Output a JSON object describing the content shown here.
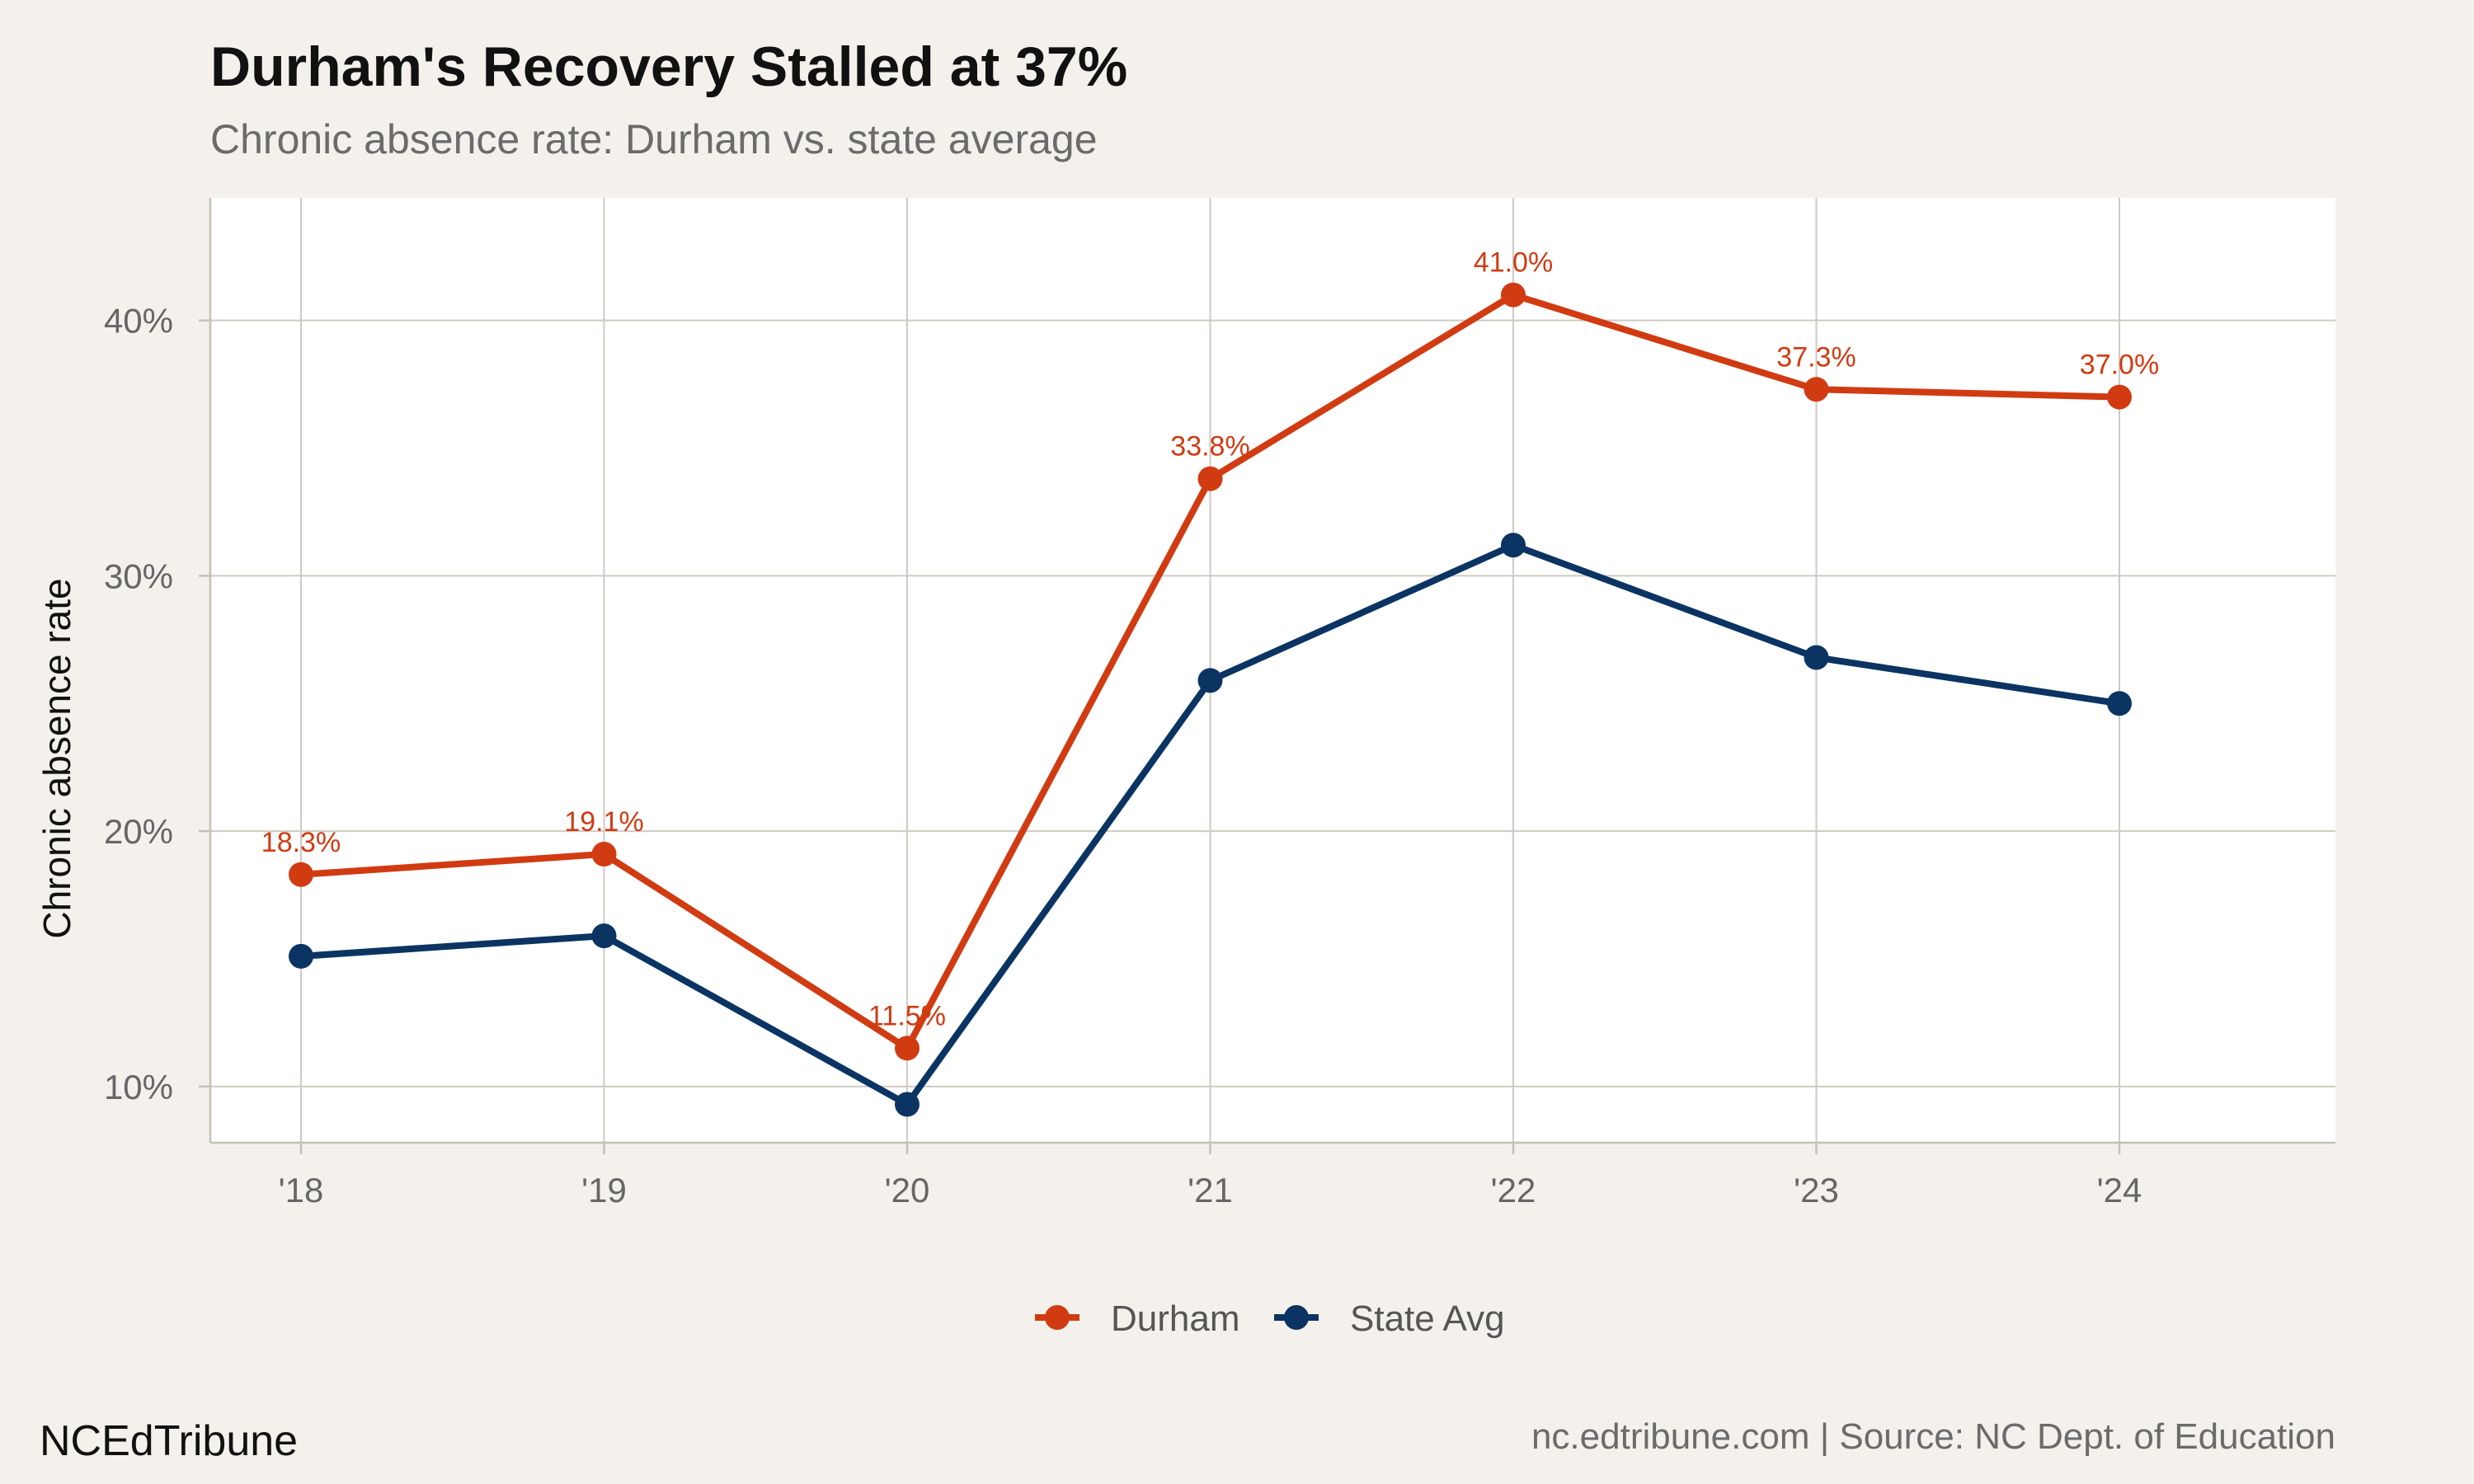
{
  "chart_data": {
    "type": "line",
    "title": "Durham's Recovery Stalled at 37%",
    "subtitle": "Chronic absence rate: Durham vs. state average",
    "xlabel": "",
    "ylabel": "Chronic absence rate",
    "categories": [
      "'18",
      "'19",
      "'20",
      "'21",
      "'22",
      "'23",
      "'24"
    ],
    "ylim": [
      7.8,
      44.8
    ],
    "yticks": [
      10,
      20,
      30,
      40
    ],
    "ytick_labels": [
      "10%",
      "20%",
      "30%",
      "40%"
    ],
    "grid": true,
    "legend_position": "bottom",
    "series": [
      {
        "name": "Durham",
        "color": "#d13b12",
        "values": [
          18.3,
          19.1,
          11.5,
          33.8,
          41.0,
          37.3,
          37.0
        ],
        "labels": [
          "18.3%",
          "19.1%",
          "11.5%",
          "33.8%",
          "41.0%",
          "37.3%",
          "37.0%"
        ]
      },
      {
        "name": "State Avg",
        "color": "#0b3463",
        "values": [
          15.1,
          15.9,
          9.3,
          25.9,
          31.2,
          26.8,
          25.0
        ]
      }
    ]
  },
  "footer": {
    "brand": "NCEdTribune",
    "source": "nc.edtribune.com | Source: NC Dept. of Education"
  }
}
